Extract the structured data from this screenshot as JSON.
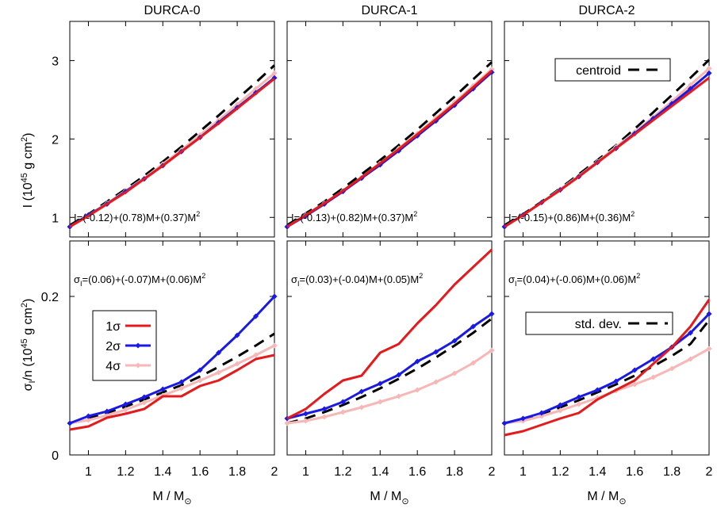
{
  "xlabel_text": "M / M",
  "xlabel_sub": "⊙",
  "col_titles": [
    "DURCA-0",
    "DURCA-1",
    "DURCA-2"
  ],
  "top_ylabel": {
    "base": "I (10",
    "sup": "45",
    "mid": " g cm",
    "sup2": "2",
    "end": ")"
  },
  "bottom_ylabel": {
    "s": "σ",
    "sub": "I",
    "mid": "/n (10",
    "sup": "45",
    "mid2": " g cm",
    "sup2": "2",
    "end": ")"
  },
  "top_legend": {
    "label": "centroid"
  },
  "bottom_legend": {
    "label": "std. dev."
  },
  "series_legend": [
    {
      "label": "1σ",
      "color": "#e41a1c",
      "marker": "none"
    },
    {
      "label": "2σ",
      "color": "#1a1ae6",
      "marker": "diamond"
    },
    {
      "label": "4σ",
      "color": "#f7b7b7",
      "marker": "diamond"
    }
  ],
  "chart_data": [
    {
      "type": "line",
      "panel": "top-left",
      "title": "DURCA-0",
      "ylabel": "I (10^45 g cm^2)",
      "xlim": [
        0.9,
        2.0
      ],
      "ylim": [
        0.75,
        3.5
      ],
      "xticks": [
        1,
        1.2,
        1.4,
        1.6,
        1.8,
        2
      ],
      "yticks": [
        1,
        2,
        3
      ],
      "x": [
        0.9,
        1.0,
        1.1,
        1.2,
        1.3,
        1.4,
        1.5,
        1.6,
        1.7,
        1.8,
        1.9,
        2.0
      ],
      "annotation": {
        "prefix": "I=(-0.12)+(0.78)M+(0.37)M",
        "sup": "2"
      },
      "series": [
        {
          "name": "1σ",
          "color": "#e41a1c",
          "values": [
            0.88,
            1.02,
            1.17,
            1.32,
            1.49,
            1.66,
            1.84,
            2.02,
            2.2,
            2.39,
            2.58,
            2.77
          ]
        },
        {
          "name": "2σ",
          "color": "#1a1ae6",
          "values": [
            0.88,
            1.03,
            1.17,
            1.33,
            1.49,
            1.66,
            1.84,
            2.02,
            2.21,
            2.4,
            2.59,
            2.78
          ]
        },
        {
          "name": "4σ",
          "color": "#f7b7b7",
          "values": [
            0.88,
            1.03,
            1.18,
            1.34,
            1.5,
            1.68,
            1.86,
            2.05,
            2.24,
            2.44,
            2.64,
            2.84
          ]
        },
        {
          "name": "centroid",
          "color": "#000000",
          "dashed": true,
          "values": [
            0.9,
            1.04,
            1.2,
            1.36,
            1.53,
            1.71,
            1.9,
            2.1,
            2.3,
            2.51,
            2.72,
            2.94
          ]
        }
      ]
    },
    {
      "type": "line",
      "panel": "top-middle",
      "title": "DURCA-1",
      "xlim": [
        0.9,
        2.0
      ],
      "ylim": [
        0.75,
        3.5
      ],
      "xticks": [
        1,
        1.2,
        1.4,
        1.6,
        1.8,
        2
      ],
      "yticks": [
        1,
        2,
        3
      ],
      "x": [
        0.9,
        1.0,
        1.1,
        1.2,
        1.3,
        1.4,
        1.5,
        1.6,
        1.7,
        1.8,
        1.9,
        2.0
      ],
      "annotation": {
        "prefix": "I=(-0.13)+(0.82)M+(0.37)M",
        "sup": "2"
      },
      "series": [
        {
          "name": "1σ",
          "color": "#e41a1c",
          "values": [
            0.88,
            1.03,
            1.18,
            1.34,
            1.51,
            1.69,
            1.87,
            2.06,
            2.25,
            2.45,
            2.66,
            2.87
          ]
        },
        {
          "name": "2σ",
          "color": "#1a1ae6",
          "values": [
            0.88,
            1.02,
            1.17,
            1.33,
            1.5,
            1.67,
            1.85,
            2.04,
            2.23,
            2.43,
            2.64,
            2.85
          ]
        },
        {
          "name": "4σ",
          "color": "#f7b7b7",
          "values": [
            0.88,
            1.03,
            1.18,
            1.34,
            1.51,
            1.69,
            1.88,
            2.07,
            2.27,
            2.47,
            2.68,
            2.89
          ]
        },
        {
          "name": "centroid",
          "color": "#000000",
          "dashed": true,
          "values": [
            0.9,
            1.05,
            1.2,
            1.37,
            1.55,
            1.73,
            1.92,
            2.12,
            2.33,
            2.54,
            2.76,
            2.98
          ]
        }
      ]
    },
    {
      "type": "line",
      "panel": "top-right",
      "title": "DURCA-2",
      "xlim": [
        0.9,
        2.0
      ],
      "ylim": [
        0.75,
        3.5
      ],
      "xticks": [
        1,
        1.2,
        1.4,
        1.6,
        1.8,
        2
      ],
      "yticks": [
        1,
        2,
        3
      ],
      "x": [
        0.9,
        1.0,
        1.1,
        1.2,
        1.3,
        1.4,
        1.5,
        1.6,
        1.7,
        1.8,
        1.9,
        2.0
      ],
      "annotation": {
        "prefix": "I=(-0.15)+(0.86)M+(0.36)M",
        "sup": "2"
      },
      "series": [
        {
          "name": "1σ",
          "color": "#e41a1c",
          "values": [
            0.88,
            1.03,
            1.19,
            1.35,
            1.52,
            1.7,
            1.88,
            2.06,
            2.24,
            2.42,
            2.6,
            2.78
          ]
        },
        {
          "name": "2σ",
          "color": "#1a1ae6",
          "values": [
            0.88,
            1.03,
            1.19,
            1.35,
            1.52,
            1.7,
            1.88,
            2.07,
            2.26,
            2.45,
            2.64,
            2.84
          ]
        },
        {
          "name": "4σ",
          "color": "#f7b7b7",
          "values": [
            0.88,
            1.03,
            1.19,
            1.36,
            1.53,
            1.71,
            1.9,
            2.09,
            2.28,
            2.48,
            2.69,
            2.9
          ]
        },
        {
          "name": "centroid",
          "color": "#000000",
          "dashed": true,
          "values": [
            0.9,
            1.04,
            1.2,
            1.37,
            1.55,
            1.73,
            1.92,
            2.13,
            2.34,
            2.56,
            2.78,
            3.01
          ]
        }
      ]
    },
    {
      "type": "line",
      "panel": "bottom-left",
      "xlabel": "M / M⊙",
      "ylabel": "σI/n (10^45 g cm^2)",
      "xlim": [
        0.9,
        2.0
      ],
      "ylim": [
        0,
        0.27
      ],
      "xticks": [
        1,
        1.2,
        1.4,
        1.6,
        1.8,
        2
      ],
      "yticks": [
        0,
        0.2
      ],
      "x": [
        0.9,
        1.0,
        1.1,
        1.2,
        1.3,
        1.4,
        1.5,
        1.6,
        1.7,
        1.8,
        1.9,
        2.0
      ],
      "annotation": {
        "s": "σ",
        "sub": "I",
        "prefix": "=(0.06)+(-0.07)M+(0.06)M",
        "sup": "2"
      },
      "series": [
        {
          "name": "1σ",
          "color": "#e41a1c",
          "values": [
            0.032,
            0.036,
            0.047,
            0.052,
            0.058,
            0.074,
            0.074,
            0.087,
            0.094,
            0.107,
            0.121,
            0.126
          ]
        },
        {
          "name": "2σ",
          "color": "#1a1ae6",
          "values": [
            0.04,
            0.049,
            0.055,
            0.064,
            0.073,
            0.083,
            0.092,
            0.107,
            0.129,
            0.151,
            0.175,
            0.2
          ]
        },
        {
          "name": "4σ",
          "color": "#f7b7b7",
          "values": [
            0.04,
            0.044,
            0.05,
            0.057,
            0.066,
            0.075,
            0.084,
            0.094,
            0.104,
            0.115,
            0.126,
            0.138
          ]
        },
        {
          "name": "std. dev.",
          "color": "#000000",
          "dashed": true,
          "values": [
            0.04,
            0.046,
            0.053,
            0.061,
            0.07,
            0.079,
            0.088,
            0.099,
            0.111,
            0.124,
            0.138,
            0.153
          ]
        }
      ]
    },
    {
      "type": "line",
      "panel": "bottom-middle",
      "xlabel": "M / M⊙",
      "xlim": [
        0.9,
        2.0
      ],
      "ylim": [
        0,
        0.27
      ],
      "xticks": [
        1,
        1.2,
        1.4,
        1.6,
        1.8,
        2
      ],
      "yticks": [
        0,
        0.2
      ],
      "x": [
        0.9,
        1.0,
        1.1,
        1.2,
        1.3,
        1.4,
        1.5,
        1.6,
        1.7,
        1.8,
        1.9,
        2.0
      ],
      "annotation": {
        "s": "σ",
        "sub": "I",
        "prefix": "=(0.03)+(-0.04)M+(0.05)M",
        "sup": "2"
      },
      "series": [
        {
          "name": "1σ",
          "color": "#e41a1c",
          "values": [
            0.046,
            0.058,
            0.077,
            0.094,
            0.1,
            0.129,
            0.14,
            0.166,
            0.189,
            0.215,
            0.237,
            0.259
          ]
        },
        {
          "name": "2σ",
          "color": "#1a1ae6",
          "values": [
            0.046,
            0.052,
            0.058,
            0.067,
            0.08,
            0.09,
            0.101,
            0.118,
            0.13,
            0.144,
            0.162,
            0.178
          ]
        },
        {
          "name": "4σ",
          "color": "#f7b7b7",
          "values": [
            0.04,
            0.043,
            0.048,
            0.054,
            0.06,
            0.067,
            0.074,
            0.082,
            0.092,
            0.103,
            0.116,
            0.132
          ]
        },
        {
          "name": "std. dev.",
          "color": "#000000",
          "dashed": true,
          "values": [
            0.04,
            0.046,
            0.054,
            0.063,
            0.073,
            0.084,
            0.096,
            0.109,
            0.123,
            0.138,
            0.154,
            0.172
          ]
        }
      ]
    },
    {
      "type": "line",
      "panel": "bottom-right",
      "xlabel": "M / M⊙",
      "xlim": [
        0.9,
        2.0
      ],
      "ylim": [
        0,
        0.27
      ],
      "xticks": [
        1,
        1.2,
        1.4,
        1.6,
        1.8,
        2
      ],
      "yticks": [
        0,
        0.2
      ],
      "x": [
        0.9,
        1.0,
        1.1,
        1.2,
        1.3,
        1.4,
        1.5,
        1.6,
        1.7,
        1.8,
        1.9,
        2.0
      ],
      "annotation": {
        "s": "σ",
        "sub": "I",
        "prefix": "=(0.04)+(-0.06)M+(0.06)M",
        "sup": "2"
      },
      "series": [
        {
          "name": "1σ",
          "color": "#e41a1c",
          "values": [
            0.025,
            0.03,
            0.038,
            0.046,
            0.053,
            0.07,
            0.082,
            0.094,
            0.115,
            0.136,
            0.162,
            0.196
          ]
        },
        {
          "name": "2σ",
          "color": "#1a1ae6",
          "values": [
            0.04,
            0.046,
            0.053,
            0.063,
            0.073,
            0.082,
            0.093,
            0.107,
            0.121,
            0.136,
            0.154,
            0.178
          ]
        },
        {
          "name": "4σ",
          "color": "#f7b7b7",
          "values": [
            0.04,
            0.043,
            0.049,
            0.056,
            0.064,
            0.072,
            0.081,
            0.089,
            0.098,
            0.109,
            0.121,
            0.134
          ]
        },
        {
          "name": "std. dev.",
          "color": "#000000",
          "dashed": true,
          "values": [
            0.04,
            0.045,
            0.052,
            0.06,
            0.069,
            0.079,
            0.089,
            0.1,
            0.112,
            0.125,
            0.14,
            0.17
          ]
        }
      ]
    }
  ]
}
